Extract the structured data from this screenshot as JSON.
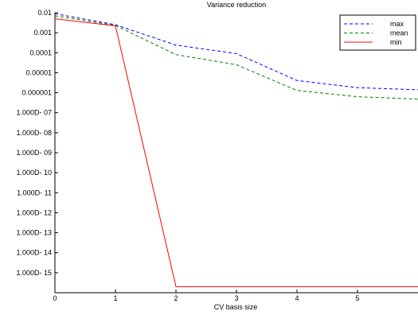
{
  "chart_data": {
    "type": "line",
    "title": "Variance reduction",
    "xlabel": "CV basis size",
    "ylabel": "",
    "y_scale": "log",
    "xlim": [
      0,
      6
    ],
    "ylim": [
      1e-16,
      0.01
    ],
    "x_ticks": [
      0,
      1,
      2,
      3,
      4,
      5
    ],
    "x_tick_labels": [
      "0",
      "1",
      "2",
      "3",
      "4",
      "5"
    ],
    "y_ticks": [
      0.01,
      0.001,
      0.0001,
      1e-05,
      1e-06,
      1e-07,
      1e-08,
      1e-09,
      1e-10,
      1e-11,
      1e-12,
      1e-13,
      1e-14,
      1e-15
    ],
    "y_tick_labels": [
      "0.01",
      "0.001",
      "0.0001",
      "0.00001",
      "0.000001",
      "1.000D- 07",
      "1.000D- 08",
      "1.000D- 09",
      "1.000D- 10",
      "1.000D- 11",
      "1.000D- 12",
      "1.000D- 13",
      "1.000D- 14",
      "1.000D- 15"
    ],
    "grid": false,
    "legend_position": "top-right",
    "x": [
      0,
      1,
      2,
      3,
      4,
      5,
      6
    ],
    "series": [
      {
        "name": "max",
        "color": "#0000ff",
        "dash": "dashed",
        "values": [
          0.009,
          0.0025,
          0.00024,
          9e-05,
          4.1e-06,
          1.8e-06,
          1.4e-06
        ]
      },
      {
        "name": "mean",
        "color": "#008000",
        "dash": "dashed",
        "values": [
          0.007,
          0.0023,
          8e-05,
          2.5e-05,
          1.3e-06,
          6.3e-07,
          4.8e-07
        ]
      },
      {
        "name": "min",
        "color": "#ff0000",
        "dash": "solid",
        "values": [
          0.005,
          0.0022,
          2e-16,
          2e-16,
          2e-16,
          2e-16,
          2e-16
        ]
      }
    ]
  }
}
